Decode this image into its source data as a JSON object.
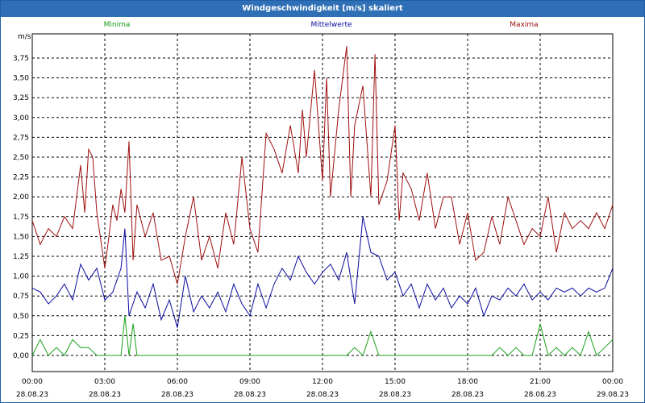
{
  "window": {
    "title": "Windgeschwindigkeit [m/s] skaliert"
  },
  "chart_data": {
    "type": "line",
    "title": "Windgeschwindigkeit [m/s] skaliert",
    "ylabel": "m/s",
    "xlabel": "",
    "ylim": [
      0,
      4.0
    ],
    "xlim": [
      0,
      24
    ],
    "grid": true,
    "legend_position": "top",
    "y_ticks": [
      "0,00",
      "0,25",
      "0,50",
      "0,75",
      "1,00",
      "1,25",
      "1,50",
      "1,75",
      "2,00",
      "2,25",
      "2,50",
      "2,75",
      "3,00",
      "3,25",
      "3,50",
      "3,75"
    ],
    "x_ticks": [
      {
        "time": "00:00",
        "date": "28.08.23"
      },
      {
        "time": "03:00",
        "date": "28.08.23"
      },
      {
        "time": "06:00",
        "date": "28.08.23"
      },
      {
        "time": "09:00",
        "date": "28.08.23"
      },
      {
        "time": "12:00",
        "date": "28.08.23"
      },
      {
        "time": "15:00",
        "date": "28.08.23"
      },
      {
        "time": "18:00",
        "date": "28.08.23"
      },
      {
        "time": "21:00",
        "date": "28.08.23"
      },
      {
        "time": "00:00",
        "date": "29.08.23"
      }
    ],
    "series": [
      {
        "name": "Minima",
        "color": "#18a018",
        "x": [
          0,
          0.33,
          0.67,
          1,
          1.33,
          1.67,
          2,
          2.33,
          2.67,
          3,
          3.33,
          3.67,
          3.83,
          4,
          4.17,
          4.33,
          4.67,
          5,
          13,
          13.33,
          13.67,
          14,
          14.33,
          14.67,
          15,
          18,
          19,
          19.33,
          19.67,
          20,
          20.33,
          20.67,
          21,
          21.33,
          21.67,
          22,
          22.33,
          22.67,
          23,
          23.33,
          23.67,
          24
        ],
        "values": [
          0,
          0.2,
          0,
          0.1,
          0,
          0.2,
          0.1,
          0.1,
          0,
          0,
          0,
          0,
          0.5,
          0,
          0.4,
          0,
          0,
          0,
          0,
          0.1,
          0,
          0.3,
          0,
          0,
          0,
          0,
          0,
          0.1,
          0,
          0.1,
          0,
          0,
          0.4,
          0,
          0.1,
          0,
          0.1,
          0,
          0.3,
          0,
          0.1,
          0.2
        ]
      },
      {
        "name": "Mittelwerte",
        "color": "#0a0aa0",
        "x": [
          0,
          0.33,
          0.67,
          1,
          1.33,
          1.67,
          2,
          2.33,
          2.67,
          3,
          3.33,
          3.67,
          3.83,
          4,
          4.33,
          4.67,
          5,
          5.33,
          5.67,
          6,
          6.33,
          6.67,
          7,
          7.33,
          7.67,
          8,
          8.33,
          8.67,
          9,
          9.33,
          9.67,
          10,
          10.33,
          10.67,
          11,
          11.33,
          11.67,
          12,
          12.33,
          12.67,
          13,
          13.33,
          13.67,
          14,
          14.33,
          14.67,
          15,
          15.33,
          15.67,
          16,
          16.33,
          16.67,
          17,
          17.33,
          17.67,
          18,
          18.33,
          18.67,
          19,
          19.33,
          19.67,
          20,
          20.33,
          20.67,
          21,
          21.33,
          21.67,
          22,
          22.33,
          22.67,
          23,
          23.33,
          23.67,
          24
        ],
        "values": [
          0.85,
          0.8,
          0.65,
          0.75,
          0.9,
          0.7,
          1.15,
          0.95,
          1.1,
          0.7,
          0.8,
          1.1,
          1.6,
          0.5,
          0.8,
          0.6,
          0.9,
          0.45,
          0.7,
          0.35,
          1.0,
          0.55,
          0.75,
          0.6,
          0.8,
          0.55,
          0.9,
          0.65,
          0.5,
          0.9,
          0.6,
          0.9,
          1.1,
          0.95,
          1.25,
          1.05,
          0.9,
          1.05,
          1.15,
          0.95,
          1.3,
          0.65,
          1.75,
          1.3,
          1.25,
          0.95,
          1.05,
          0.75,
          0.9,
          0.6,
          0.9,
          0.7,
          0.85,
          0.6,
          0.75,
          0.65,
          0.85,
          0.5,
          0.75,
          0.7,
          0.85,
          0.75,
          0.9,
          0.7,
          0.8,
          0.7,
          0.85,
          0.8,
          0.85,
          0.75,
          0.85,
          0.8,
          0.85,
          1.1
        ]
      },
      {
        "name": "Maxima",
        "color": "#a01010",
        "x": [
          0,
          0.33,
          0.67,
          1,
          1.33,
          1.67,
          2,
          2.17,
          2.33,
          2.5,
          2.67,
          3,
          3.17,
          3.33,
          3.5,
          3.67,
          3.83,
          4,
          4.17,
          4.33,
          4.67,
          5,
          5.33,
          5.67,
          6,
          6.33,
          6.67,
          7,
          7.33,
          7.67,
          8,
          8.33,
          8.67,
          9,
          9.33,
          9.67,
          10,
          10.33,
          10.67,
          11,
          11.17,
          11.33,
          11.67,
          12,
          12.17,
          12.33,
          12.67,
          13,
          13.17,
          13.33,
          13.67,
          14,
          14.17,
          14.33,
          14.67,
          15,
          15.17,
          15.33,
          15.67,
          16,
          16.33,
          16.67,
          17,
          17.33,
          17.67,
          18,
          18.33,
          18.67,
          19,
          19.33,
          19.67,
          20,
          20.33,
          20.67,
          21,
          21.33,
          21.67,
          22,
          22.33,
          22.67,
          23,
          23.33,
          23.67,
          24
        ],
        "values": [
          1.7,
          1.4,
          1.6,
          1.5,
          1.75,
          1.6,
          2.4,
          1.8,
          2.6,
          2.5,
          1.8,
          1.1,
          1.5,
          1.9,
          1.7,
          2.1,
          1.8,
          2.7,
          1.2,
          1.9,
          1.5,
          1.8,
          1.2,
          1.25,
          0.9,
          1.5,
          2.0,
          1.2,
          1.5,
          1.1,
          1.8,
          1.4,
          2.5,
          1.6,
          1.3,
          2.8,
          2.6,
          2.3,
          2.9,
          2.3,
          3.1,
          2.5,
          3.6,
          2.2,
          3.5,
          2.0,
          3.1,
          3.9,
          2.0,
          2.9,
          3.4,
          2.0,
          3.8,
          1.9,
          2.2,
          2.9,
          1.7,
          2.3,
          2.1,
          1.7,
          2.3,
          1.6,
          2.0,
          2.0,
          1.4,
          1.8,
          1.2,
          1.3,
          1.75,
          1.4,
          2.0,
          1.7,
          1.4,
          1.6,
          1.5,
          2.0,
          1.3,
          1.8,
          1.6,
          1.7,
          1.6,
          1.8,
          1.6,
          1.9
        ]
      }
    ]
  }
}
